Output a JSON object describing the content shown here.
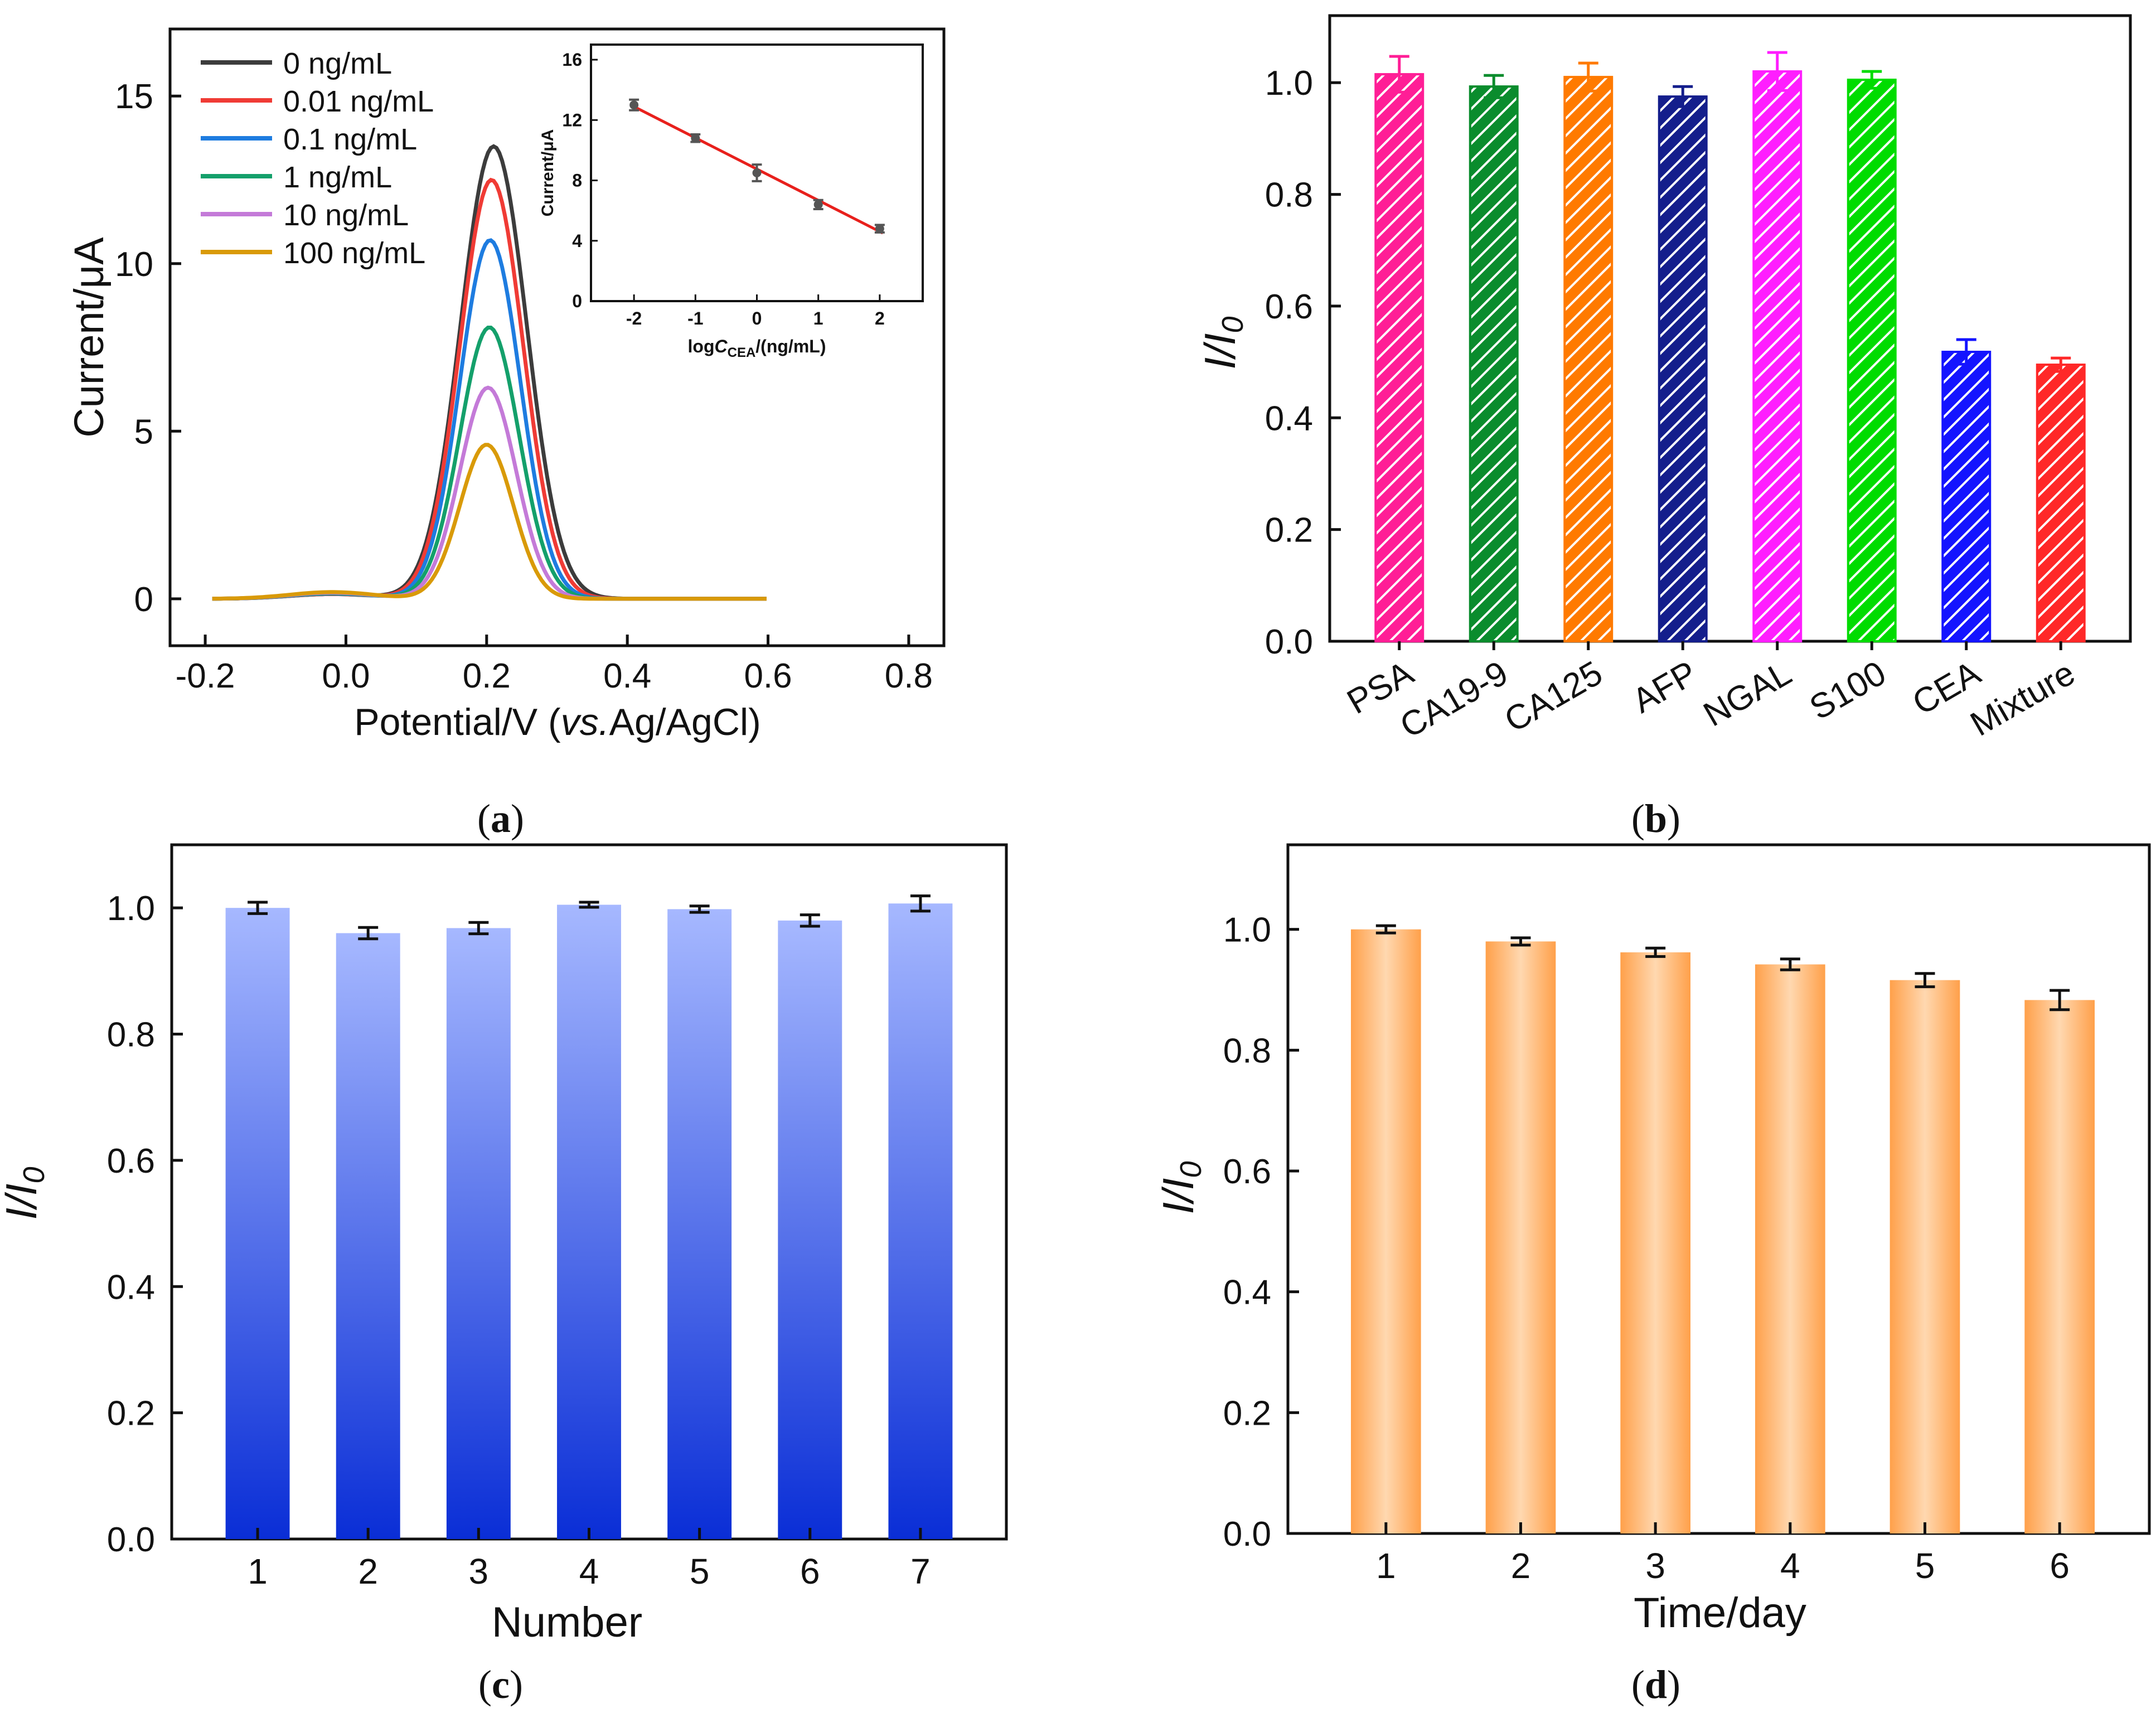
{
  "figure": {
    "panel_labels": [
      "a",
      "b",
      "c",
      "d"
    ],
    "colors": {
      "axis": "#111111",
      "fit_line": "#e8201c",
      "inset_point": "#555555"
    }
  },
  "chart_data": [
    {
      "id": "a",
      "type": "line",
      "title": "",
      "xlabel_prefix": "Potential/V (",
      "xlabel_italic": "vs.",
      "xlabel_suffix": "Ag/AgCl)",
      "ylabel": "Current/μA",
      "xlim": [
        -0.25,
        0.85
      ],
      "ylim": [
        -1.4,
        17
      ],
      "xticks": [
        -0.2,
        0.0,
        0.2,
        0.4,
        0.6,
        0.8
      ],
      "xtick_labels": [
        "-0.2",
        "0.0",
        "0.2",
        "0.4",
        "0.6",
        "0.8"
      ],
      "yticks": [
        0,
        5,
        10,
        15
      ],
      "ytick_labels": [
        "0",
        "5",
        "10",
        "15"
      ],
      "legend_position": "top-left",
      "series": [
        {
          "name": "0 ng/mL",
          "color": "#3c3c3c",
          "peak_x": 0.21,
          "peak_y": 13.5,
          "width": 0.047,
          "bump": 0.14
        },
        {
          "name": "0.01 ng/mL",
          "color": "#f03b35",
          "peak_x": 0.207,
          "peak_y": 12.5,
          "width": 0.045,
          "bump": 0.14
        },
        {
          "name": "0.1 ng/mL",
          "color": "#1e7ce0",
          "peak_x": 0.205,
          "peak_y": 10.7,
          "width": 0.043,
          "bump": 0.15
        },
        {
          "name": "1 ng/mL",
          "color": "#14a06b",
          "peak_x": 0.204,
          "peak_y": 8.1,
          "width": 0.042,
          "bump": 0.16
        },
        {
          "name": "10 ng/mL",
          "color": "#c47ad8",
          "peak_x": 0.202,
          "peak_y": 6.3,
          "width": 0.04,
          "bump": 0.18
        },
        {
          "name": "100 ng/mL",
          "color": "#d99a08",
          "peak_x": 0.2,
          "peak_y": 4.6,
          "width": 0.038,
          "bump": 0.2
        }
      ],
      "curve_range": [
        -0.19,
        0.6
      ],
      "bump_center": -0.02,
      "bump_width": 0.06,
      "inset": {
        "type": "scatter",
        "xlabel_prefix": "log",
        "xlabel_italic": "C",
        "xlabel_sub": "CEA",
        "xlabel_suffix": "/(ng/mL)",
        "ylabel": "Current/μA",
        "xlim": [
          -2.7,
          2.7
        ],
        "ylim": [
          0,
          17
        ],
        "xticks": [
          -2,
          -1,
          0,
          1,
          2
        ],
        "xtick_labels": [
          "-2",
          "-1",
          "0",
          "1",
          "2"
        ],
        "yticks": [
          0,
          4,
          8,
          12,
          16
        ],
        "ytick_labels": [
          "0",
          "4",
          "8",
          "12",
          "16"
        ],
        "x": [
          -2,
          -1,
          0,
          1,
          2
        ],
        "y": [
          13.0,
          10.8,
          8.5,
          6.4,
          4.8
        ],
        "err": [
          0.35,
          0.25,
          0.55,
          0.3,
          0.25
        ],
        "fit": {
          "slope": -2.07,
          "intercept": 8.75
        }
      }
    },
    {
      "id": "b",
      "type": "bar",
      "pattern": "hatched",
      "xlabel": "",
      "ylabel_main": "I",
      "ylabel_sep": "/",
      "ylabel_den": "I",
      "ylabel_sub": "0",
      "ylim": [
        0,
        1.12
      ],
      "yticks": [
        0,
        0.2,
        0.4,
        0.6,
        0.8,
        1.0
      ],
      "ytick_labels": [
        "0.0",
        "0.2",
        "0.4",
        "0.6",
        "0.8",
        "1.0"
      ],
      "categories": [
        "PSA",
        "CA19-9",
        "CA125",
        "AFP",
        "NGAL",
        "S100",
        "CEA",
        "Mixture"
      ],
      "values": [
        1.015,
        0.993,
        1.01,
        0.975,
        1.02,
        1.005,
        0.518,
        0.495
      ],
      "errors": [
        0.032,
        0.02,
        0.025,
        0.018,
        0.034,
        0.015,
        0.022,
        0.012
      ],
      "colors": [
        "#ff1e96",
        "#0a8c2d",
        "#ff7a00",
        "#141e8c",
        "#ff1eff",
        "#00dc00",
        "#1414ff",
        "#ff2828"
      ]
    },
    {
      "id": "c",
      "type": "bar",
      "gradient": [
        "#a6b8ff",
        "#0a2ed6"
      ],
      "xlabel": "Number",
      "ylabel_main": "I",
      "ylabel_sep": "/",
      "ylabel_den": "I",
      "ylabel_sub": "0",
      "ylim": [
        0,
        1.1
      ],
      "yticks": [
        0,
        0.2,
        0.4,
        0.6,
        0.8,
        1.0
      ],
      "ytick_labels": [
        "0.0",
        "0.2",
        "0.4",
        "0.6",
        "0.8",
        "1.0"
      ],
      "categories": [
        "1",
        "2",
        "3",
        "4",
        "5",
        "6",
        "7"
      ],
      "values": [
        1.0,
        0.96,
        0.968,
        1.005,
        0.998,
        0.98,
        1.007
      ],
      "errors": [
        0.009,
        0.009,
        0.009,
        0.004,
        0.005,
        0.009,
        0.012
      ]
    },
    {
      "id": "d",
      "type": "bar",
      "gradient": [
        "#ffa04a",
        "#ffd8b0"
      ],
      "xlabel": "Time/day",
      "ylabel_main": "I",
      "ylabel_sep": "/",
      "ylabel_den": "I",
      "ylabel_sub": "0",
      "ylim": [
        0,
        1.14
      ],
      "yticks": [
        0,
        0.2,
        0.4,
        0.6,
        0.8,
        1.0
      ],
      "ytick_labels": [
        "0.0",
        "0.2",
        "0.4",
        "0.6",
        "0.8",
        "1.0"
      ],
      "categories": [
        "1",
        "2",
        "3",
        "4",
        "5",
        "6"
      ],
      "values": [
        1.0,
        0.98,
        0.962,
        0.942,
        0.916,
        0.883
      ],
      "errors": [
        0.006,
        0.006,
        0.007,
        0.009,
        0.011,
        0.016
      ]
    }
  ]
}
